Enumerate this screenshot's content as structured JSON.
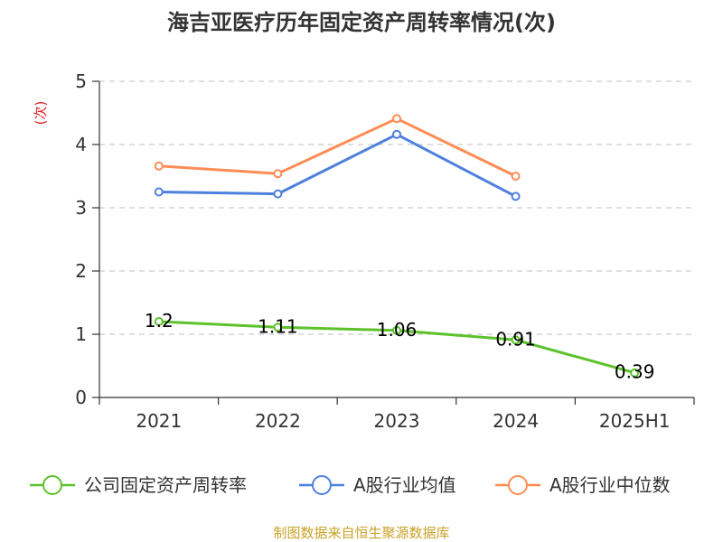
{
  "chart_data": {
    "type": "line",
    "title": "海吉亚医疗历年固定资产周转率情况(次)",
    "ylabel": "(次)",
    "xlabel": "",
    "categories": [
      "2021",
      "2022",
      "2023",
      "2024",
      "2025H1"
    ],
    "ylim": [
      0,
      5
    ],
    "yticks": [
      0,
      1,
      2,
      3,
      4,
      5
    ],
    "grid": true,
    "legend_position": "bottom",
    "series": [
      {
        "name": "公司固定资产周转率",
        "color": "#5cc22b",
        "values": [
          1.2,
          1.11,
          1.06,
          0.91,
          0.39
        ],
        "labels": [
          "1.2",
          "1.11",
          "1.06",
          "0.91",
          "0.39"
        ]
      },
      {
        "name": "A股行业均值",
        "color": "#4e80dd",
        "values": [
          3.25,
          3.22,
          4.16,
          3.18,
          null
        ]
      },
      {
        "name": "A股行业中位数",
        "color": "#ff8c55",
        "values": [
          3.66,
          3.54,
          4.41,
          3.5,
          null
        ]
      }
    ],
    "source": "制图数据来自恒生聚源数据库"
  },
  "colors": {
    "title": "#333333",
    "axis": "#333333",
    "grid": "#cccccc",
    "ylabel": "#e02020",
    "source": "#c9a227"
  }
}
